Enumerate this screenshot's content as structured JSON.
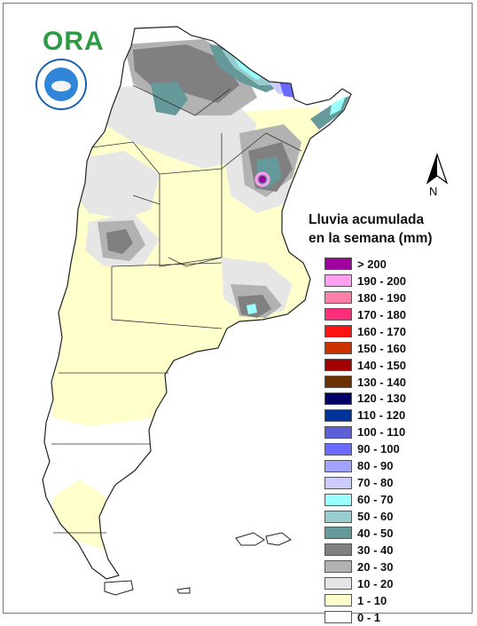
{
  "header": {
    "logo_text": "ORA",
    "seal_icon": "institutional-seal-icon"
  },
  "north_arrow": {
    "label": "N"
  },
  "legend": {
    "title_line1": "Lluvia acumulada",
    "title_line2": "en la semana (mm)",
    "items": [
      {
        "label": "> 200",
        "color": "#a000a0"
      },
      {
        "label": "190 - 200",
        "color": "#ff9ff0"
      },
      {
        "label": "180 - 190",
        "color": "#ff7fa8"
      },
      {
        "label": "170 - 180",
        "color": "#ff2d7a"
      },
      {
        "label": "160 - 170",
        "color": "#ff1212"
      },
      {
        "label": "150 - 160",
        "color": "#cc3300"
      },
      {
        "label": "140 - 150",
        "color": "#a50000"
      },
      {
        "label": "130 - 140",
        "color": "#6b3000"
      },
      {
        "label": "120 - 130",
        "color": "#000066"
      },
      {
        "label": "110 - 120",
        "color": "#00339a"
      },
      {
        "label": "100 - 110",
        "color": "#5d5fd6"
      },
      {
        "label": "90 - 100",
        "color": "#6a6aff"
      },
      {
        "label": "80 - 90",
        "color": "#a3a3ff"
      },
      {
        "label": "70 - 80",
        "color": "#ccccff"
      },
      {
        "label": "60 - 70",
        "color": "#99ffff"
      },
      {
        "label": "50 - 60",
        "color": "#99cccc"
      },
      {
        "label": "40 - 50",
        "color": "#669999"
      },
      {
        "label": "30 - 40",
        "color": "#808080"
      },
      {
        "label": "20 - 30",
        "color": "#b2b2b2"
      },
      {
        "label": "10 - 20",
        "color": "#e6e6e6"
      },
      {
        "label": "1 - 10",
        "color": "#ffffcc"
      },
      {
        "label": "0 - 1",
        "color": "#ffffff"
      }
    ]
  },
  "map": {
    "region_colors": {
      "c0_1": "#ffffff",
      "c1_10": "#ffffcc",
      "c10_20": "#e6e6e6",
      "c20_30": "#b2b2b2",
      "c30_40": "#808080",
      "c40_50": "#669999",
      "c50_60": "#99cccc",
      "c60_70": "#99ffff",
      "c70_80": "#ccccff",
      "c90_100": "#6a6aff",
      "c200": "#a000a0"
    }
  }
}
